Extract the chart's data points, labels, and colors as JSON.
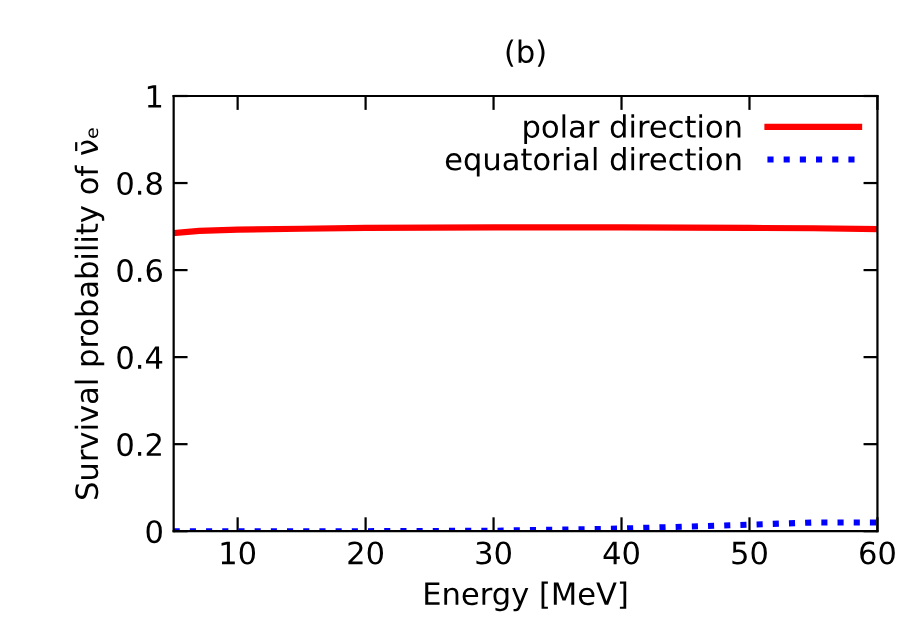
{
  "chart_data": {
    "type": "line",
    "title": "(b)",
    "xlabel": "Energy [MeV]",
    "ylabel": "Survival probability of ν̄ₑ",
    "x": [
      5,
      7,
      10,
      15,
      20,
      30,
      40,
      50,
      55,
      60
    ],
    "series": [
      {
        "name": "polar direction",
        "color": "#ff0000",
        "line_style": "solid",
        "values": [
          0.685,
          0.69,
          0.693,
          0.695,
          0.697,
          0.698,
          0.698,
          0.697,
          0.696,
          0.694
        ]
      },
      {
        "name": "equatorial direction",
        "color": "#0000ff",
        "line_style": "dotted",
        "values": [
          0,
          0,
          0,
          0,
          0,
          0.001,
          0.006,
          0.015,
          0.02,
          0.02
        ]
      }
    ],
    "xlim": [
      5,
      60
    ],
    "xticks": [
      10,
      20,
      30,
      40,
      50,
      60
    ],
    "ylim": [
      0,
      1
    ],
    "yticks": [
      0,
      0.2,
      0.4,
      0.6,
      0.8,
      1
    ],
    "legend": "top right",
    "grid": false
  }
}
